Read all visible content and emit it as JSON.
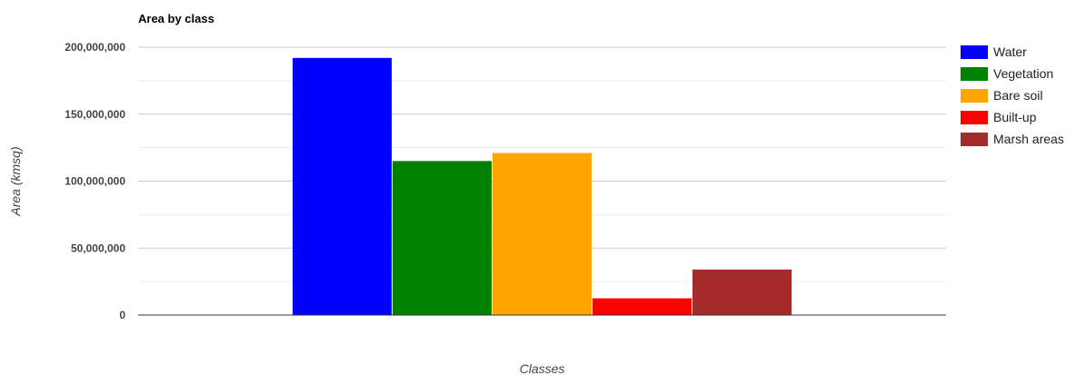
{
  "chart_data": {
    "type": "bar",
    "title": "Area by class",
    "xlabel": "Classes",
    "ylabel": "Area (kmsq)",
    "ylim": [
      0,
      200000000
    ],
    "yticks": [
      "0",
      "50,000,000",
      "100,000,000",
      "150,000,000",
      "200,000,000"
    ],
    "ytick_values": [
      0,
      50000000,
      100000000,
      150000000,
      200000000
    ],
    "grid": true,
    "legend_position": "right",
    "series": [
      {
        "name": "Water",
        "value": 192000000,
        "color": "#0000ff"
      },
      {
        "name": "Vegetation",
        "value": 115000000,
        "color": "#008000"
      },
      {
        "name": "Bare soil",
        "value": 121000000,
        "color": "#ffa500"
      },
      {
        "name": "Built-up",
        "value": 12500000,
        "color": "#ff0000"
      },
      {
        "name": "Marsh areas",
        "value": 34000000,
        "color": "#a52a2a"
      }
    ]
  }
}
